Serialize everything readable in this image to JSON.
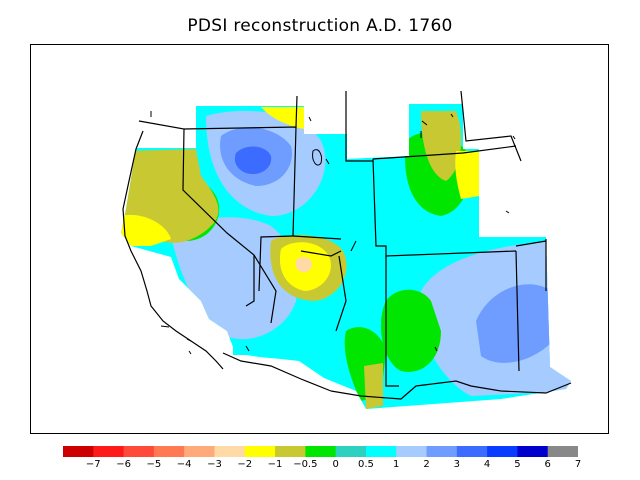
{
  "title": "PDSI reconstruction A.D. 1760",
  "colors": {
    "frame": "#000000",
    "bins": [
      "#cc0000",
      "#ff1a1a",
      "#ff4a3a",
      "#ff7a52",
      "#ffaa7a",
      "#ffd9a6",
      "#ffff00",
      "#c8c832",
      "#00e600",
      "#2ed0c0",
      "#00ffff",
      "#a6ccff",
      "#6f9cff",
      "#3b6cff",
      "#0a3cff",
      "#0000cc",
      "#888888"
    ]
  },
  "legend": {
    "tick_labels": [
      "−7",
      "−6",
      "−5",
      "−4",
      "−3",
      "−2",
      "−1",
      "−0.5",
      "0",
      "0.5",
      "1",
      "2",
      "3",
      "4",
      "5",
      "6",
      "7"
    ]
  },
  "map": {
    "region": "Western United States",
    "fill_zones": [
      "dry-west-coast",
      "wet-great-basin",
      "dry-four-corners",
      "wet-plains",
      "moist-rockies"
    ]
  }
}
